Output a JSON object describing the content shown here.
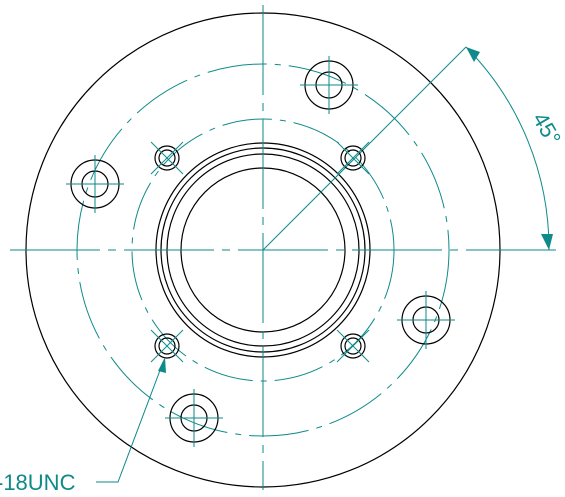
{
  "colors": {
    "outline": "#000000",
    "centerline": "#0e8a8a",
    "annotation": "#0e8a8a"
  },
  "annotations": {
    "angle_label": "45°",
    "thread_label": "-18UNC"
  }
}
